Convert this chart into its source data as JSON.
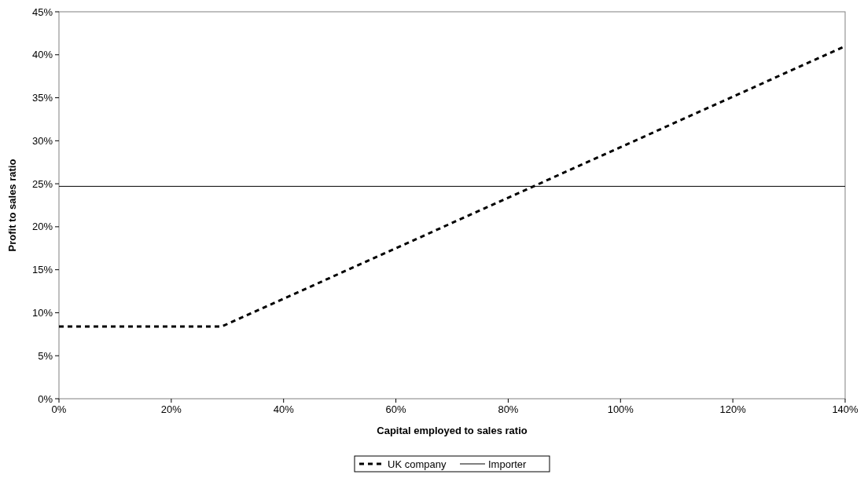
{
  "chart_data": {
    "type": "line",
    "xlabel": "Capital employed to sales ratio",
    "ylabel": "Profit to sales ratio",
    "xlim": [
      0,
      140
    ],
    "ylim": [
      0,
      45
    ],
    "xticks": [
      {
        "value": 0,
        "label": "0%"
      },
      {
        "value": 20,
        "label": "20%"
      },
      {
        "value": 40,
        "label": "40%"
      },
      {
        "value": 60,
        "label": "60%"
      },
      {
        "value": 80,
        "label": "80%"
      },
      {
        "value": 100,
        "label": "100%"
      },
      {
        "value": 120,
        "label": "120%"
      },
      {
        "value": 140,
        "label": "140%"
      }
    ],
    "yticks": [
      {
        "value": 0,
        "label": "0%"
      },
      {
        "value": 5,
        "label": "5%"
      },
      {
        "value": 10,
        "label": "10%"
      },
      {
        "value": 15,
        "label": "15%"
      },
      {
        "value": 20,
        "label": "20%"
      },
      {
        "value": 25,
        "label": "25%"
      },
      {
        "value": 30,
        "label": "30%"
      },
      {
        "value": 35,
        "label": "35%"
      },
      {
        "value": 40,
        "label": "40%"
      },
      {
        "value": 45,
        "label": "45%"
      }
    ],
    "grid": false,
    "legend": "bottom",
    "marker": "none",
    "series": [
      {
        "name": "UK company",
        "color": "#000000",
        "line_style": "dashed",
        "x": [
          0,
          29,
          140
        ],
        "values": [
          8.4,
          8.4,
          41
        ]
      },
      {
        "name": "Importer",
        "color": "#000000",
        "line_style": "solid",
        "x": [
          0,
          140
        ],
        "values": [
          24.7,
          24.7
        ]
      }
    ]
  }
}
